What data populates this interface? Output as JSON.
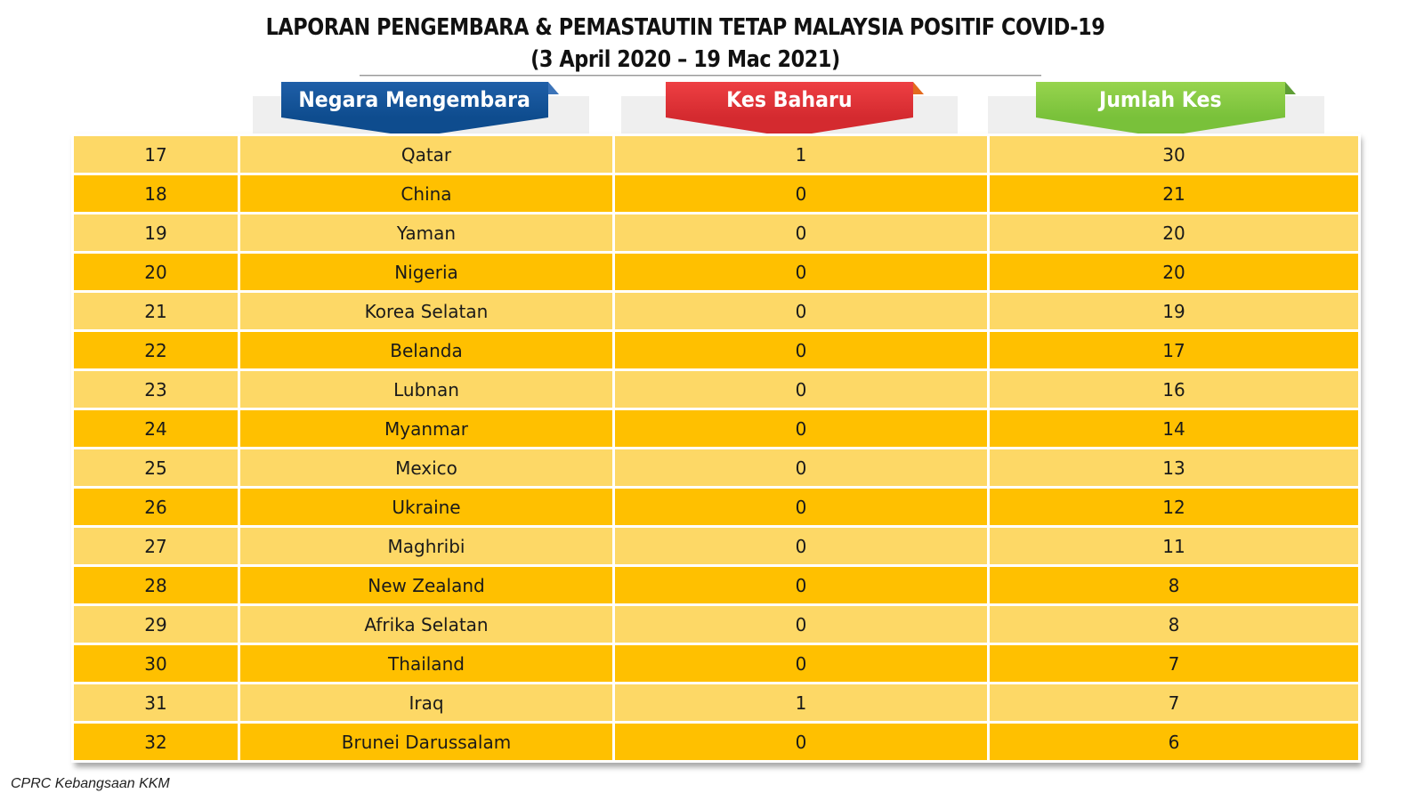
{
  "title": {
    "line1": "LAPORAN PENGEMBARA & PEMASTAUTIN TETAP MALAYSIA POSITIF COVID-19",
    "line2": "(3 April 2020 – 19 Mac 2021)"
  },
  "headers": {
    "country": "Negara Mengembara",
    "new_cases": "Kes Baharu",
    "total_cases": "Jumlah Kes"
  },
  "colors": {
    "country_header": "#0e4c8e",
    "new_cases_header": "#d42a2f",
    "total_cases_header": "#79c13a",
    "row_light": "#fdd866",
    "row_dark": "#ffc000"
  },
  "rows": [
    {
      "no": "17",
      "country": "Qatar",
      "new": "1",
      "total": "30"
    },
    {
      "no": "18",
      "country": "China",
      "new": "0",
      "total": "21"
    },
    {
      "no": "19",
      "country": "Yaman",
      "new": "0",
      "total": "20"
    },
    {
      "no": "20",
      "country": "Nigeria",
      "new": "0",
      "total": "20"
    },
    {
      "no": "21",
      "country": "Korea Selatan",
      "new": "0",
      "total": "19"
    },
    {
      "no": "22",
      "country": "Belanda",
      "new": "0",
      "total": "17"
    },
    {
      "no": "23",
      "country": "Lubnan",
      "new": "0",
      "total": "16"
    },
    {
      "no": "24",
      "country": "Myanmar",
      "new": "0",
      "total": "14"
    },
    {
      "no": "25",
      "country": "Mexico",
      "new": "0",
      "total": "13"
    },
    {
      "no": "26",
      "country": "Ukraine",
      "new": "0",
      "total": "12"
    },
    {
      "no": "27",
      "country": "Maghribi",
      "new": "0",
      "total": "11"
    },
    {
      "no": "28",
      "country": "New Zealand",
      "new": "0",
      "total": "8"
    },
    {
      "no": "29",
      "country": "Afrika Selatan",
      "new": "0",
      "total": "8"
    },
    {
      "no": "30",
      "country": "Thailand",
      "new": "0",
      "total": "7"
    },
    {
      "no": "31",
      "country": "Iraq",
      "new": "1",
      "total": "7"
    },
    {
      "no": "32",
      "country": "Brunei Darussalam",
      "new": "0",
      "total": "6"
    }
  ],
  "footer": "CPRC Kebangsaan KKM"
}
